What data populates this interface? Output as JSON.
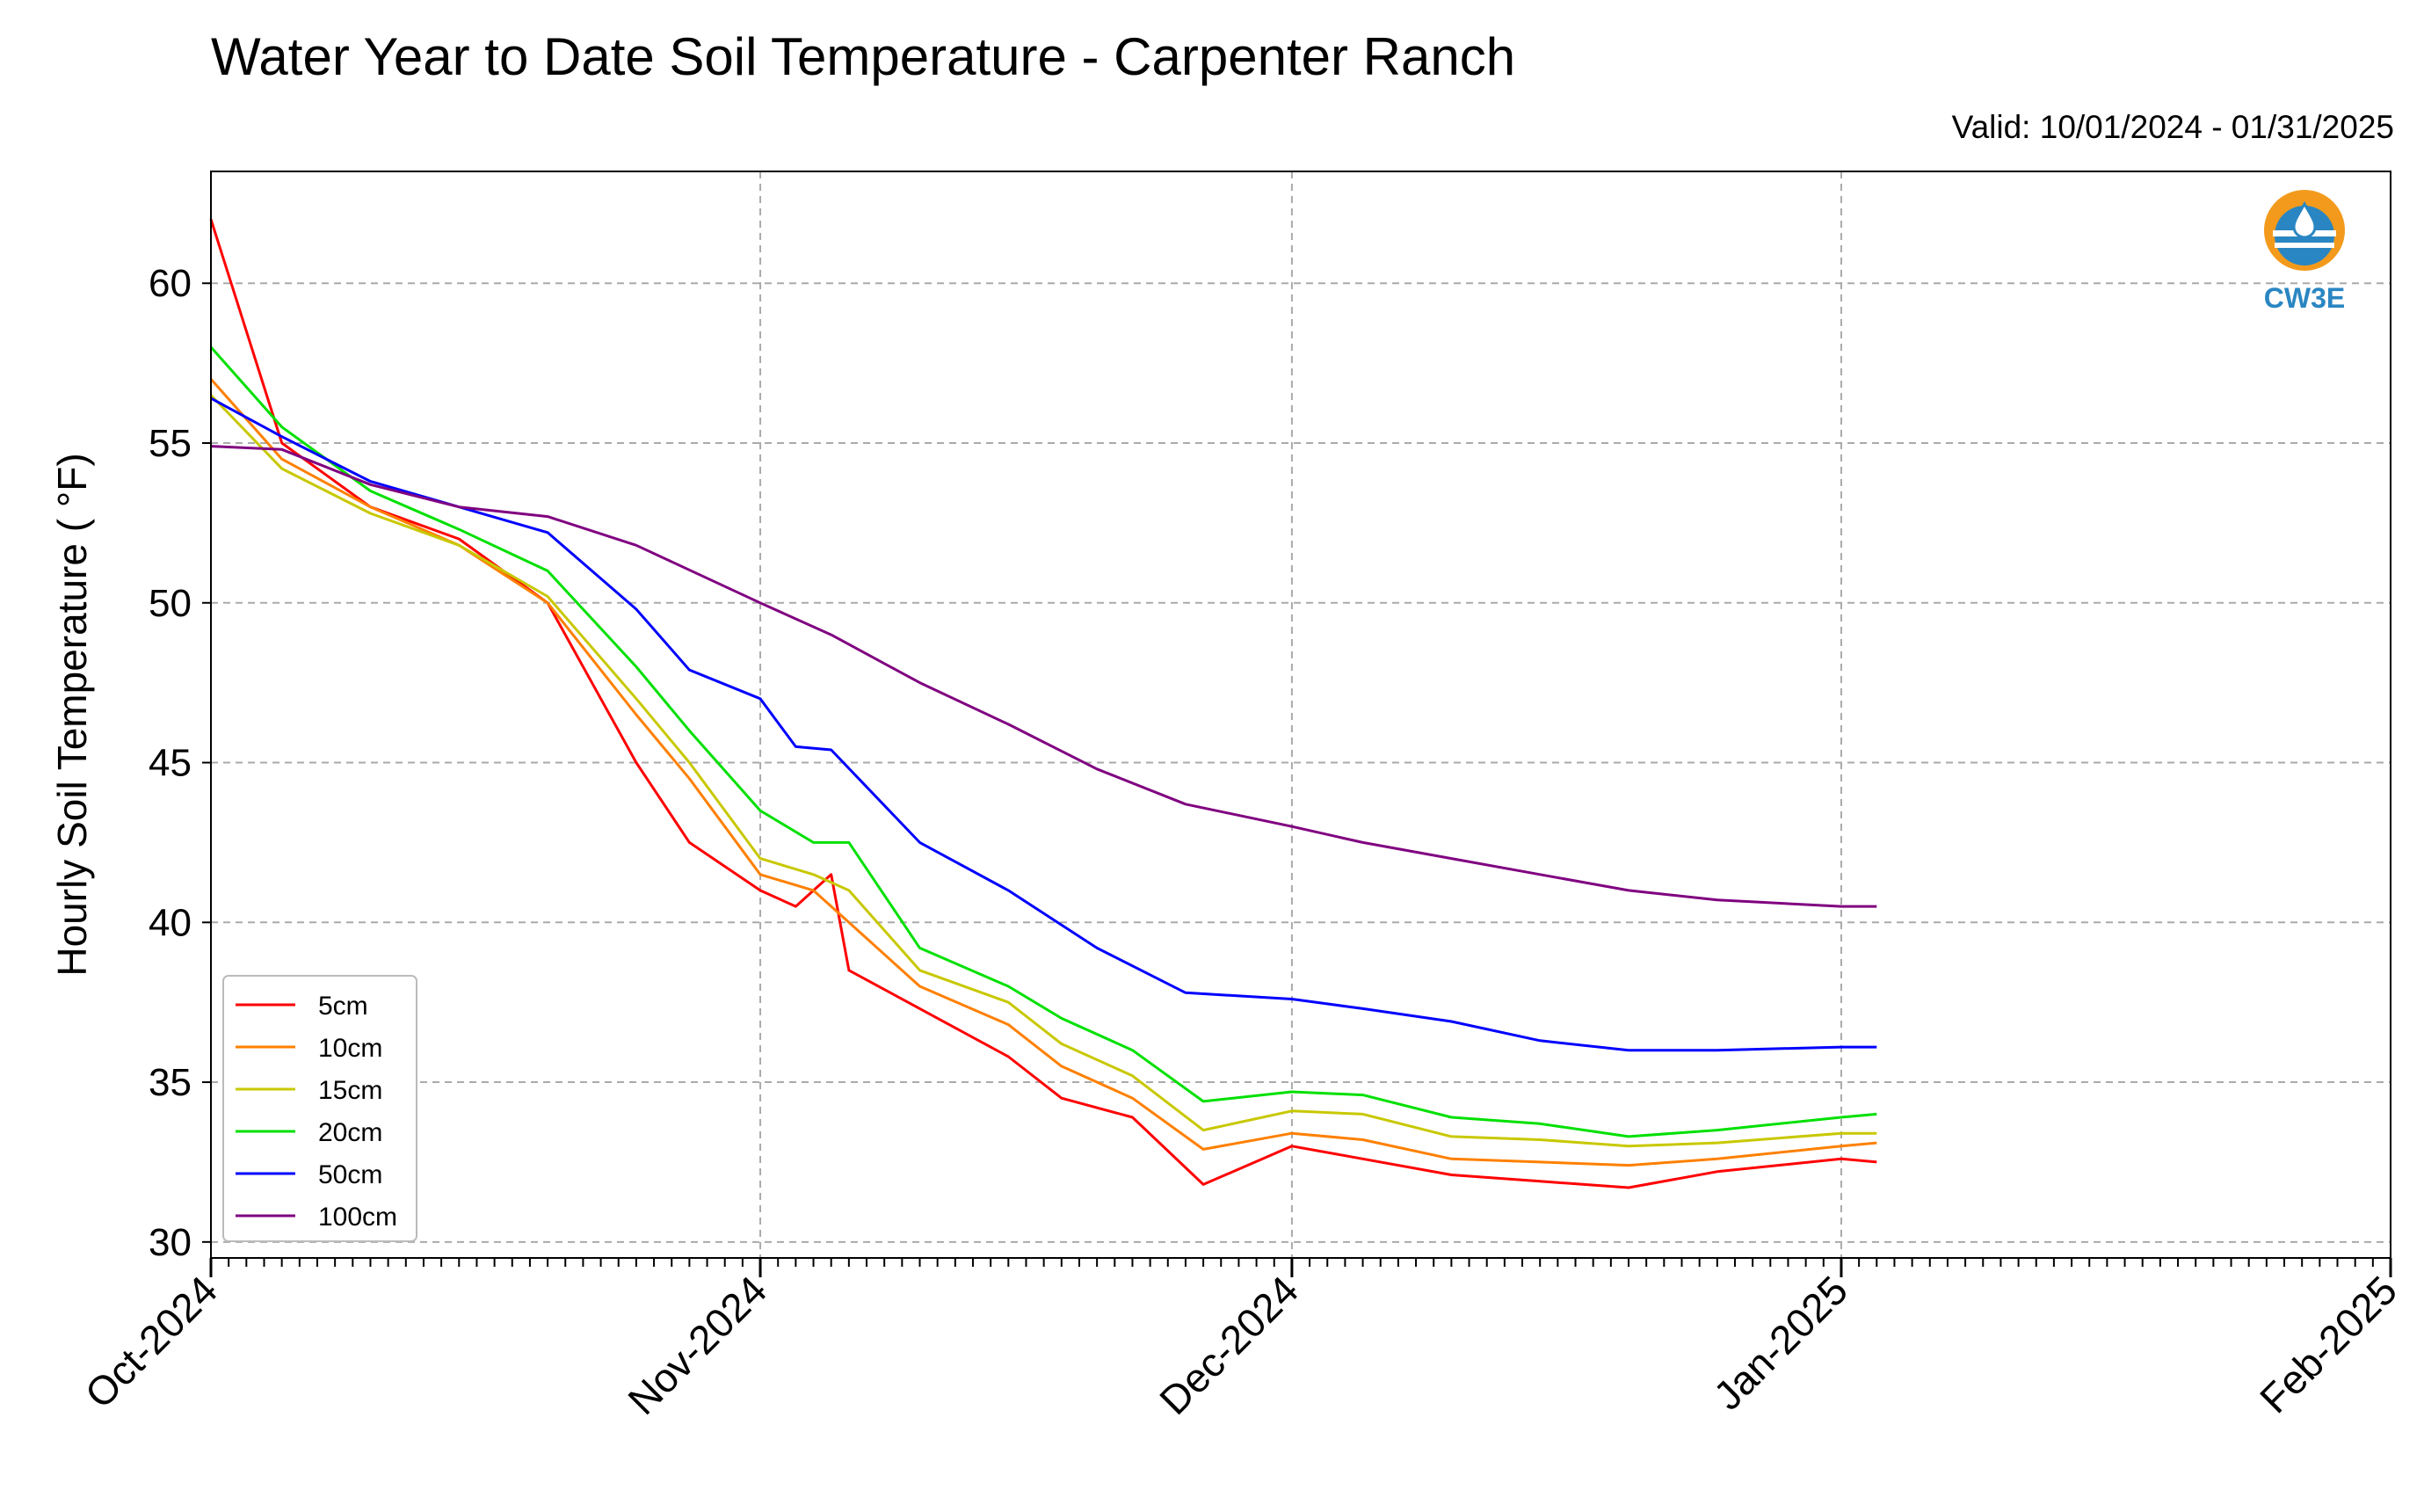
{
  "chart_data": {
    "type": "line",
    "title": "Water Year to Date Soil Temperature - Carpenter Ranch",
    "subtitle": "Valid: 10/01/2024 - 01/31/2025",
    "xlabel": "",
    "ylabel": "Hourly Soil Temperature ( °F)",
    "x_axis_type": "date",
    "xlim": [
      "2024-10-01",
      "2025-02-01"
    ],
    "ylim": [
      29.5,
      63.5
    ],
    "x_ticks": [
      {
        "date": "2024-10-01",
        "label": "Oct-2024"
      },
      {
        "date": "2024-11-01",
        "label": "Nov-2024"
      },
      {
        "date": "2024-12-01",
        "label": "Dec-2024"
      },
      {
        "date": "2025-01-01",
        "label": "Jan-2025"
      },
      {
        "date": "2025-02-01",
        "label": "Feb-2025"
      }
    ],
    "y_ticks": [
      30,
      35,
      40,
      45,
      50,
      55,
      60
    ],
    "grid": true,
    "legend_position": "lower-left",
    "logo_text": "CW3E",
    "series": [
      {
        "name": "5cm",
        "color": "#ff0000",
        "points": [
          [
            "2024-10-01",
            62.0
          ],
          [
            "2024-10-05",
            55.0
          ],
          [
            "2024-10-10",
            53.0
          ],
          [
            "2024-10-15",
            52.0
          ],
          [
            "2024-10-20",
            50.0
          ],
          [
            "2024-10-25",
            45.0
          ],
          [
            "2024-10-28",
            42.5
          ],
          [
            "2024-11-01",
            41.0
          ],
          [
            "2024-11-03",
            40.5
          ],
          [
            "2024-11-05",
            41.5
          ],
          [
            "2024-11-06",
            38.5
          ],
          [
            "2024-11-10",
            37.3
          ],
          [
            "2024-11-15",
            35.8
          ],
          [
            "2024-11-18",
            34.5
          ],
          [
            "2024-11-22",
            33.9
          ],
          [
            "2024-11-26",
            31.8
          ],
          [
            "2024-12-01",
            33.0
          ],
          [
            "2024-12-05",
            32.6
          ],
          [
            "2024-12-10",
            32.1
          ],
          [
            "2024-12-15",
            31.9
          ],
          [
            "2024-12-20",
            31.7
          ],
          [
            "2024-12-25",
            32.2
          ],
          [
            "2025-01-01",
            32.6
          ],
          [
            "2025-01-03",
            32.5
          ]
        ]
      },
      {
        "name": "10cm",
        "color": "#ff8000",
        "points": [
          [
            "2024-10-01",
            57.0
          ],
          [
            "2024-10-05",
            54.5
          ],
          [
            "2024-10-10",
            53.0
          ],
          [
            "2024-10-15",
            51.8
          ],
          [
            "2024-10-20",
            50.0
          ],
          [
            "2024-10-25",
            46.5
          ],
          [
            "2024-10-28",
            44.5
          ],
          [
            "2024-11-01",
            41.5
          ],
          [
            "2024-11-04",
            41.0
          ],
          [
            "2024-11-06",
            40.0
          ],
          [
            "2024-11-10",
            38.0
          ],
          [
            "2024-11-15",
            36.8
          ],
          [
            "2024-11-18",
            35.5
          ],
          [
            "2024-11-22",
            34.5
          ],
          [
            "2024-11-26",
            32.9
          ],
          [
            "2024-12-01",
            33.4
          ],
          [
            "2024-12-05",
            33.2
          ],
          [
            "2024-12-10",
            32.6
          ],
          [
            "2024-12-15",
            32.5
          ],
          [
            "2024-12-20",
            32.4
          ],
          [
            "2024-12-25",
            32.6
          ],
          [
            "2025-01-01",
            33.0
          ],
          [
            "2025-01-03",
            33.1
          ]
        ]
      },
      {
        "name": "15cm",
        "color": "#c8c800",
        "points": [
          [
            "2024-10-01",
            56.5
          ],
          [
            "2024-10-05",
            54.2
          ],
          [
            "2024-10-10",
            52.8
          ],
          [
            "2024-10-15",
            51.8
          ],
          [
            "2024-10-20",
            50.2
          ],
          [
            "2024-10-25",
            47.0
          ],
          [
            "2024-10-28",
            45.0
          ],
          [
            "2024-11-01",
            42.0
          ],
          [
            "2024-11-04",
            41.5
          ],
          [
            "2024-11-06",
            41.0
          ],
          [
            "2024-11-10",
            38.5
          ],
          [
            "2024-11-15",
            37.5
          ],
          [
            "2024-11-18",
            36.2
          ],
          [
            "2024-11-22",
            35.2
          ],
          [
            "2024-11-26",
            33.5
          ],
          [
            "2024-12-01",
            34.1
          ],
          [
            "2024-12-05",
            34.0
          ],
          [
            "2024-12-10",
            33.3
          ],
          [
            "2024-12-15",
            33.2
          ],
          [
            "2024-12-20",
            33.0
          ],
          [
            "2024-12-25",
            33.1
          ],
          [
            "2025-01-01",
            33.4
          ],
          [
            "2025-01-03",
            33.4
          ]
        ]
      },
      {
        "name": "20cm",
        "color": "#00e000",
        "points": [
          [
            "2024-10-01",
            58.0
          ],
          [
            "2024-10-05",
            55.5
          ],
          [
            "2024-10-10",
            53.5
          ],
          [
            "2024-10-15",
            52.3
          ],
          [
            "2024-10-20",
            51.0
          ],
          [
            "2024-10-25",
            48.0
          ],
          [
            "2024-10-28",
            46.0
          ],
          [
            "2024-11-01",
            43.5
          ],
          [
            "2024-11-04",
            42.5
          ],
          [
            "2024-11-06",
            42.5
          ],
          [
            "2024-11-10",
            39.2
          ],
          [
            "2024-11-15",
            38.0
          ],
          [
            "2024-11-18",
            37.0
          ],
          [
            "2024-11-22",
            36.0
          ],
          [
            "2024-11-26",
            34.4
          ],
          [
            "2024-12-01",
            34.7
          ],
          [
            "2024-12-05",
            34.6
          ],
          [
            "2024-12-10",
            33.9
          ],
          [
            "2024-12-15",
            33.7
          ],
          [
            "2024-12-20",
            33.3
          ],
          [
            "2024-12-25",
            33.5
          ],
          [
            "2025-01-01",
            33.9
          ],
          [
            "2025-01-03",
            34.0
          ]
        ]
      },
      {
        "name": "50cm",
        "color": "#0000ff",
        "points": [
          [
            "2024-10-01",
            56.4
          ],
          [
            "2024-10-05",
            55.2
          ],
          [
            "2024-10-10",
            53.8
          ],
          [
            "2024-10-15",
            53.0
          ],
          [
            "2024-10-20",
            52.2
          ],
          [
            "2024-10-25",
            49.8
          ],
          [
            "2024-10-28",
            47.9
          ],
          [
            "2024-11-01",
            47.0
          ],
          [
            "2024-11-03",
            45.5
          ],
          [
            "2024-11-05",
            45.4
          ],
          [
            "2024-11-10",
            42.5
          ],
          [
            "2024-11-15",
            41.0
          ],
          [
            "2024-11-20",
            39.2
          ],
          [
            "2024-11-25",
            37.8
          ],
          [
            "2024-12-01",
            37.6
          ],
          [
            "2024-12-05",
            37.3
          ],
          [
            "2024-12-10",
            36.9
          ],
          [
            "2024-12-15",
            36.3
          ],
          [
            "2024-12-20",
            36.0
          ],
          [
            "2024-12-25",
            36.0
          ],
          [
            "2025-01-01",
            36.1
          ],
          [
            "2025-01-03",
            36.1
          ]
        ]
      },
      {
        "name": "100cm",
        "color": "#800080",
        "points": [
          [
            "2024-10-01",
            54.9
          ],
          [
            "2024-10-05",
            54.8
          ],
          [
            "2024-10-10",
            53.7
          ],
          [
            "2024-10-15",
            53.0
          ],
          [
            "2024-10-20",
            52.7
          ],
          [
            "2024-10-25",
            51.8
          ],
          [
            "2024-11-01",
            50.0
          ],
          [
            "2024-11-05",
            49.0
          ],
          [
            "2024-11-10",
            47.5
          ],
          [
            "2024-11-15",
            46.2
          ],
          [
            "2024-11-20",
            44.8
          ],
          [
            "2024-11-25",
            43.7
          ],
          [
            "2024-12-01",
            43.0
          ],
          [
            "2024-12-05",
            42.5
          ],
          [
            "2024-12-10",
            42.0
          ],
          [
            "2024-12-15",
            41.5
          ],
          [
            "2024-12-20",
            41.0
          ],
          [
            "2024-12-25",
            40.7
          ],
          [
            "2025-01-01",
            40.5
          ],
          [
            "2025-01-03",
            40.5
          ]
        ]
      }
    ]
  }
}
